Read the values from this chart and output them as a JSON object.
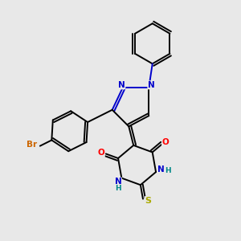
{
  "background_color": "#e8e8e8",
  "atom_colors": {
    "C": "#000000",
    "N": "#0000cc",
    "O": "#ff0000",
    "S": "#aaaa00",
    "Br": "#cc6600",
    "H": "#008888"
  },
  "figsize": [
    3.0,
    3.0
  ],
  "dpi": 100,
  "xlim": [
    0,
    10
  ],
  "ylim": [
    0,
    10
  ]
}
